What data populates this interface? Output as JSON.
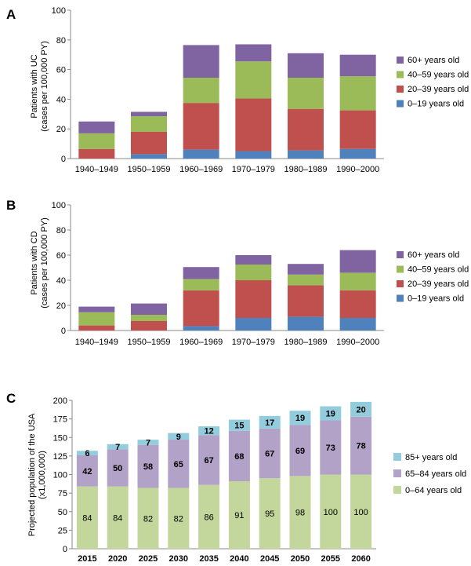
{
  "chart_data": [
    {
      "type": "bar",
      "stacked": true,
      "panel_label": "A",
      "ylabel_line1": "Patients with UC",
      "ylabel_line2": "(cases per 100,000 PY)",
      "ylim": [
        0,
        100
      ],
      "yticks": [
        "0",
        "20",
        "40",
        "60",
        "80",
        "100"
      ],
      "categories": [
        "1940–1949",
        "1950–1959",
        "1960–1969",
        "1970–1979",
        "1980–1989",
        "1990–2000"
      ],
      "legend_position": "right",
      "series": [
        {
          "name": "0–19 years old",
          "color": "#4F81BD",
          "values": [
            0,
            3,
            6,
            5,
            5.5,
            6.5
          ]
        },
        {
          "name": "20–39 years old",
          "color": "#C0504D",
          "values": [
            6.5,
            15,
            31.5,
            35.5,
            28,
            26
          ]
        },
        {
          "name": "40–59 years old",
          "color": "#9BBB59",
          "values": [
            10.5,
            10.5,
            17,
            25,
            21,
            23
          ]
        },
        {
          "name": "60+ years old",
          "color": "#8064A2",
          "values": [
            8,
            3,
            22,
            11.5,
            16.5,
            14.5
          ]
        }
      ]
    },
    {
      "type": "bar",
      "stacked": true,
      "panel_label": "B",
      "ylabel_line1": "Patients with CD",
      "ylabel_line2": "(cases per 100,000 PY)",
      "ylim": [
        0,
        100
      ],
      "yticks": [
        "0",
        "20",
        "40",
        "60",
        "80",
        "100"
      ],
      "categories": [
        "1940–1949",
        "1950–1959",
        "1960–1969",
        "1970–1979",
        "1980–1989",
        "1990–2000"
      ],
      "legend_position": "right",
      "series": [
        {
          "name": "0–19 years old",
          "color": "#4F81BD",
          "values": [
            0,
            0,
            3.5,
            10,
            11,
            10
          ]
        },
        {
          "name": "20–39 years old",
          "color": "#C0504D",
          "values": [
            4,
            7.5,
            28.5,
            30,
            25,
            22
          ]
        },
        {
          "name": "40–59 years old",
          "color": "#9BBB59",
          "values": [
            10.5,
            5,
            9,
            12.5,
            8.5,
            14
          ]
        },
        {
          "name": "60+ years old",
          "color": "#8064A2",
          "values": [
            4.5,
            9,
            9.5,
            7.5,
            8.5,
            18
          ]
        }
      ]
    },
    {
      "type": "bar",
      "stacked": true,
      "panel_label": "C",
      "ylabel_line1": "Projected population of the USA",
      "ylabel_line2": "(x1,000,000)",
      "ylim": [
        0,
        200
      ],
      "yticks": [
        "0",
        "25",
        "50",
        "75",
        "100",
        "125",
        "150",
        "175",
        "200"
      ],
      "categories": [
        "2015",
        "2020",
        "2025",
        "2030",
        "2035",
        "2040",
        "2045",
        "2050",
        "2055",
        "2060"
      ],
      "legend_position": "right",
      "series": [
        {
          "name": "0–64 years old",
          "color": "#C3D69B",
          "values": [
            84,
            84,
            82,
            82,
            86,
            91,
            95,
            98,
            100,
            100
          ],
          "labels": [
            "84",
            "84",
            "82",
            "82",
            "86",
            "91",
            "95",
            "98",
            "100",
            "100"
          ]
        },
        {
          "name": "65–84 years old",
          "color": "#B3A2C7",
          "values": [
            42,
            50,
            58,
            65,
            67,
            68,
            67,
            69,
            73,
            78
          ],
          "labels": [
            "42",
            "50",
            "58",
            "65",
            "67",
            "68",
            "67",
            "69",
            "73",
            "78"
          ]
        },
        {
          "name": "85+ years old",
          "color": "#93CDDD",
          "values": [
            6,
            7,
            7,
            9,
            12,
            15,
            17,
            19,
            19,
            20
          ],
          "labels": [
            "6",
            "7",
            "7",
            "9",
            "12",
            "15",
            "17",
            "19",
            "19",
            "20"
          ]
        }
      ]
    }
  ]
}
